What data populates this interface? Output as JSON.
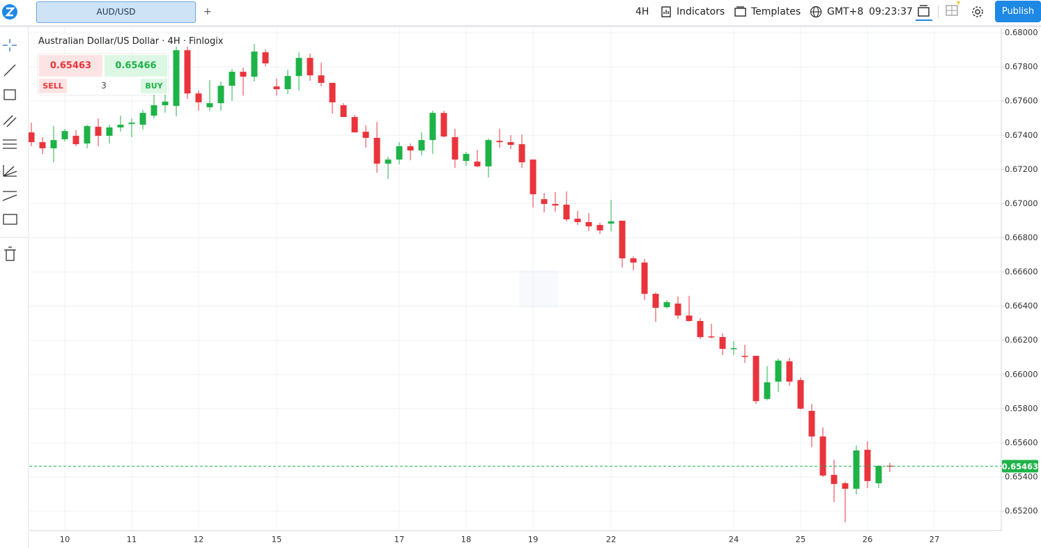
{
  "toolbar": {
    "symbol": "AUD/USD",
    "add": "+",
    "interval": "4H",
    "indicators": "Indicators",
    "templates": "Templates",
    "timezone": "GMT+8",
    "time": "09:23:37",
    "publish": "Publish"
  },
  "trade_panel": {
    "sell_price": "0.65463",
    "buy_price": "0.65466",
    "sell": "SELL",
    "quantity": "3",
    "buy": "BUY"
  },
  "chart_data": {
    "type": "candlestick",
    "title": "Australian Dollar/US Dollar · 4H · Finlogix",
    "categories": [
      null,
      null,
      null,
      "10",
      null,
      null,
      null,
      null,
      null,
      "11",
      null,
      null,
      null,
      null,
      null,
      "12",
      null,
      null,
      null,
      null,
      null,
      null,
      "15",
      null,
      null,
      null,
      null,
      null,
      null,
      null,
      null,
      null,
      null,
      "17",
      null,
      null,
      null,
      null,
      null,
      "18",
      null,
      null,
      null,
      null,
      null,
      "19",
      null,
      null,
      null,
      null,
      null,
      null,
      "22",
      null,
      null,
      null,
      null,
      null,
      null,
      null,
      null,
      null,
      null,
      "24",
      null,
      null,
      null,
      null,
      null,
      "25",
      null,
      null,
      null,
      null,
      null,
      "26",
      null,
      null,
      null,
      null,
      null,
      "27",
      null,
      null,
      null,
      null,
      null,
      null
    ],
    "open": [
      0.67417,
      0.6736,
      0.67324,
      0.67377,
      0.67397,
      0.67352,
      0.6745,
      0.67397,
      0.67446,
      0.67466,
      0.67462,
      0.67515,
      0.67576,
      0.67572,
      0.67898,
      0.67645,
      0.67564,
      0.67588,
      0.6769,
      0.67772,
      0.67743,
      0.67886,
      0.67686,
      0.6767,
      0.67747,
      0.67853,
      0.67751,
      0.67707,
      0.67576,
      0.67507,
      0.67421,
      0.67385,
      0.67234,
      0.67258,
      0.67336,
      0.67311,
      0.67372,
      0.67531,
      0.67389,
      0.6725,
      0.67246,
      0.67218,
      0.67368,
      0.6736,
      0.67348,
      0.67258,
      0.67026,
      0.66998,
      0.66994,
      0.66912,
      0.66892,
      0.66875,
      0.66883,
      0.669,
      0.6668,
      0.66655,
      0.66472,
      0.66394,
      0.66415,
      0.66345,
      0.66313,
      0.66223,
      0.66219,
      0.6615,
      0.66109,
      0.66109,
      0.65857,
      0.65958,
      0.66077,
      0.65967,
      0.65787,
      0.65637,
      0.65412,
      0.65363,
      0.65331,
      0.65559,
      0.65363,
      0.65466,
      null,
      null,
      null,
      null,
      null,
      null,
      null,
      null,
      null,
      null
    ],
    "high": [
      0.67474,
      0.67389,
      0.67454,
      0.67438,
      0.6743,
      0.67462,
      0.67499,
      0.67462,
      0.67515,
      0.67499,
      0.67548,
      0.67637,
      0.67682,
      0.6798,
      0.67923,
      0.67662,
      0.67723,
      0.67715,
      0.67788,
      0.67796,
      0.67935,
      0.67902,
      0.67731,
      0.67784,
      0.67886,
      0.67878,
      0.67825,
      0.67707,
      0.67588,
      0.67519,
      0.67458,
      0.67478,
      0.67275,
      0.6736,
      0.67352,
      0.67417,
      0.67544,
      0.67544,
      0.67438,
      0.67303,
      0.67315,
      0.67381,
      0.67438,
      0.67401,
      0.67405,
      0.67258,
      0.67063,
      0.67067,
      0.67071,
      0.66957,
      0.66945,
      0.66888,
      0.67022,
      0.669,
      0.66692,
      0.66676,
      0.6648,
      0.66435,
      0.66456,
      0.6646,
      0.66329,
      0.66297,
      0.6624,
      0.66195,
      0.66174,
      0.66109,
      0.66048,
      0.66093,
      0.66097,
      0.65983,
      0.65828,
      0.6569,
      0.65502,
      0.65372,
      0.65584,
      0.65608,
      0.65469,
      0.65482,
      null,
      null,
      null,
      null,
      null,
      null,
      null,
      null,
      null,
      null
    ],
    "low": [
      0.67336,
      0.67291,
      0.67242,
      0.67364,
      0.67336,
      0.67324,
      0.67336,
      0.67352,
      0.67421,
      0.67389,
      0.67434,
      0.67499,
      0.67531,
      0.67511,
      0.67613,
      0.67544,
      0.67544,
      0.67544,
      0.67601,
      0.67633,
      0.67715,
      0.67804,
      0.67633,
      0.67641,
      0.67662,
      0.67719,
      0.67686,
      0.67527,
      0.67507,
      0.67417,
      0.67328,
      0.67181,
      0.67144,
      0.6723,
      0.67254,
      0.67283,
      0.67291,
      0.67389,
      0.67209,
      0.67222,
      0.67214,
      0.67152,
      0.67328,
      0.6732,
      0.67209,
      0.66977,
      0.66949,
      0.66953,
      0.66896,
      0.66875,
      0.66839,
      0.66822,
      0.66839,
      0.66627,
      0.6661,
      0.66435,
      0.66309,
      0.66386,
      0.66325,
      0.66309,
      0.66207,
      0.66211,
      0.66113,
      0.66113,
      0.66068,
      0.65828,
      0.65848,
      0.65897,
      0.65934,
      0.65795,
      0.65575,
      0.654,
      0.65253,
      0.65135,
      0.65298,
      0.65335,
      0.65335,
      0.65429,
      null,
      null,
      null,
      null,
      null,
      null,
      null,
      null,
      null,
      null
    ],
    "close": [
      0.6736,
      0.67324,
      0.67372,
      0.67425,
      0.67348,
      0.67454,
      0.67397,
      0.67446,
      0.67462,
      0.67474,
      0.67531,
      0.67576,
      0.67597,
      0.67898,
      0.67645,
      0.67593,
      0.67588,
      0.6769,
      0.67772,
      0.67743,
      0.6789,
      0.67821,
      0.6767,
      0.67747,
      0.67853,
      0.67751,
      0.67707,
      0.67593,
      0.67507,
      0.67417,
      0.67385,
      0.67234,
      0.67258,
      0.67336,
      0.67311,
      0.67372,
      0.67531,
      0.67393,
      0.67258,
      0.67291,
      0.67218,
      0.67372,
      0.6736,
      0.67344,
      0.67242,
      0.67055,
      0.66998,
      0.66989,
      0.66908,
      0.66892,
      0.66867,
      0.66843,
      0.66896,
      0.6668,
      0.66655,
      0.66472,
      0.6639,
      0.66423,
      0.66345,
      0.66313,
      0.66219,
      0.66219,
      0.6615,
      0.66154,
      0.66105,
      0.65844,
      0.65954,
      0.66081,
      0.65958,
      0.658,
      0.65637,
      0.65408,
      0.65359,
      0.65331,
      0.65555,
      0.65376,
      0.65465,
      0.65463,
      null,
      null,
      null,
      null,
      null,
      null,
      null,
      null,
      null,
      null
    ],
    "up_color": "#1db347",
    "down_color": "#e9343c",
    "ylim": [
      0.65086,
      0.68029
    ],
    "yticks": [
      {
        "value": 0.652,
        "label": "0.65200"
      },
      {
        "value": 0.654,
        "label": "0.65400"
      },
      {
        "value": 0.656,
        "label": "0.65600"
      },
      {
        "value": 0.658,
        "label": "0.65800"
      },
      {
        "value": 0.66,
        "label": "0.66000"
      },
      {
        "value": 0.662,
        "label": "0.66200"
      },
      {
        "value": 0.664,
        "label": "0.66400"
      },
      {
        "value": 0.666,
        "label": "0.66600"
      },
      {
        "value": 0.668,
        "label": "0.66800"
      },
      {
        "value": 0.67,
        "label": "0.67000"
      },
      {
        "value": 0.672,
        "label": "0.67200"
      },
      {
        "value": 0.674,
        "label": "0.67400"
      },
      {
        "value": 0.676,
        "label": "0.67600"
      },
      {
        "value": 0.678,
        "label": "0.67800"
      },
      {
        "value": 0.68,
        "label": "0.68000"
      }
    ],
    "grid": true,
    "last_price": 0.65463,
    "last_price_color": "#1db347"
  }
}
